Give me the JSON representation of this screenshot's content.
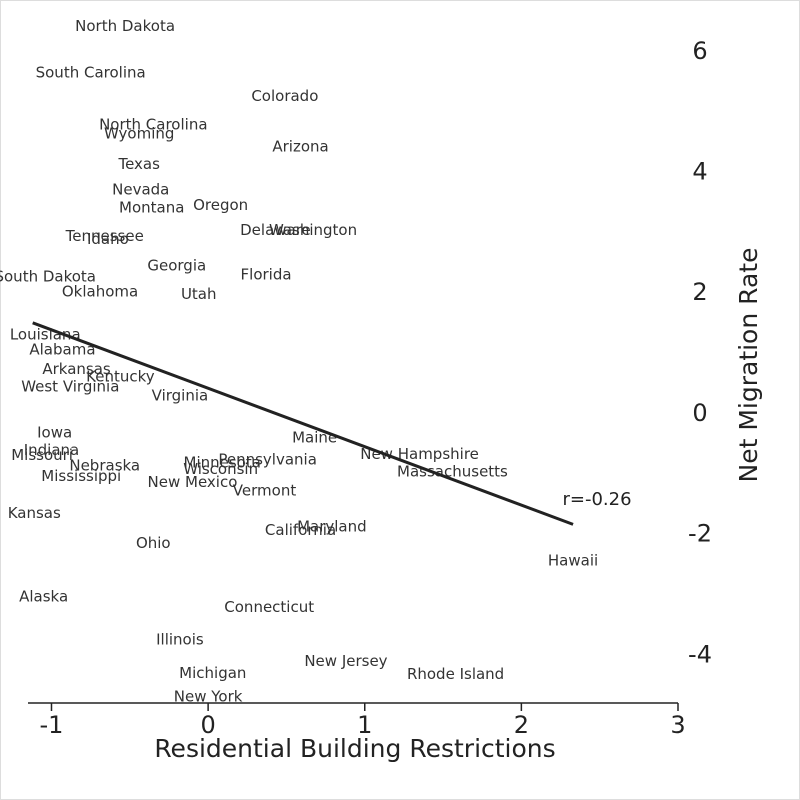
{
  "chart_data": {
    "type": "scatter",
    "x_label": "Residential Building Restrictions",
    "y_label": "Net Migration Rate",
    "annotation": "r=-0.26",
    "points": {
      "labels": [
        "North Dakota",
        "South Carolina",
        "Colorado",
        "North Carolina",
        "Wyoming",
        "Arizona",
        "Texas",
        "Nevada",
        "Montana",
        "Oregon",
        "Delaware",
        "Washington",
        "Tennessee",
        "Idaho",
        "Georgia",
        "Florida",
        "South Dakota",
        "Oklahoma",
        "Utah",
        "Louisiana",
        "Alabama",
        "Arkansas",
        "Kentucky",
        "West Virginia",
        "Virginia",
        "Iowa",
        "Indiana",
        "Missouri",
        "Maine",
        "New Hampshire",
        "Pennsylvania",
        "Minnesota",
        "Nebraska",
        "Wisconsin",
        "Massachusetts",
        "Mississippi",
        "New Mexico",
        "Vermont",
        "Kansas",
        "Maryland",
        "California",
        "Ohio",
        "Hawaii",
        "Alaska",
        "Connecticut",
        "Illinois",
        "New Jersey",
        "Michigan",
        "Rhode Island",
        "New York"
      ],
      "x": [
        -0.53,
        -0.75,
        0.49,
        -0.35,
        -0.44,
        0.59,
        -0.44,
        -0.43,
        -0.36,
        0.08,
        0.43,
        0.67,
        -0.66,
        -0.64,
        -0.2,
        0.37,
        -1.04,
        -0.69,
        -0.06,
        -1.04,
        -0.93,
        -0.84,
        -0.56,
        -0.88,
        -0.18,
        -0.98,
        -1.0,
        -1.06,
        0.68,
        1.35,
        0.38,
        0.09,
        -0.66,
        0.08,
        1.56,
        -0.81,
        -0.1,
        0.36,
        -1.11,
        0.79,
        0.59,
        -0.35,
        2.33,
        -1.05,
        0.39,
        -0.18,
        0.88,
        0.03,
        1.58,
        0.0
      ],
      "y": [
        6.42,
        5.65,
        5.26,
        4.79,
        4.64,
        4.42,
        4.13,
        3.71,
        3.41,
        3.45,
        3.04,
        3.04,
        2.94,
        2.89,
        2.45,
        2.3,
        2.27,
        2.02,
        1.98,
        1.31,
        1.06,
        0.74,
        0.61,
        0.45,
        0.3,
        -0.32,
        -0.61,
        -0.69,
        -0.4,
        -0.67,
        -0.76,
        -0.81,
        -0.86,
        -0.92,
        -0.96,
        -1.04,
        -1.14,
        -1.28,
        -1.65,
        -1.87,
        -1.93,
        -2.15,
        -2.44,
        -3.03,
        -3.21,
        -3.75,
        -4.1,
        -4.3,
        -4.32,
        -4.69
      ]
    },
    "fit_line": {
      "x": [
        -1.12,
        2.33
      ],
      "y": [
        1.51,
        -1.83
      ],
      "color": "#222222"
    },
    "xlim": [
      -1.15,
      3.0
    ],
    "xticks": [
      -1,
      0,
      1,
      2,
      3
    ],
    "ylim": [
      -4.8,
      7.0
    ],
    "yticks": [
      -4,
      -2,
      0,
      2,
      4,
      6
    ]
  }
}
